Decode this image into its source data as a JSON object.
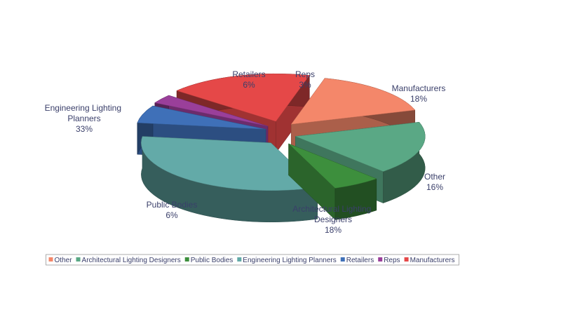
{
  "chart_data": {
    "type": "pie3d",
    "categories": [
      "Other",
      "Architectural Lighting Designers",
      "Public Bodies",
      "Engineering Lighting Planners",
      "Retailers",
      "Reps",
      "Manufacturers"
    ],
    "values": [
      16,
      18,
      6,
      33,
      6,
      3,
      18
    ],
    "value_labels": [
      "16%",
      "18%",
      "6%",
      "33%",
      "6%",
      "3%",
      "18%"
    ],
    "colors": [
      "#f4876a",
      "#5aa885",
      "#3d8f3d",
      "#63aaa8",
      "#3f70b8",
      "#9a3f9a",
      "#e54848"
    ],
    "legend": "bottom"
  }
}
